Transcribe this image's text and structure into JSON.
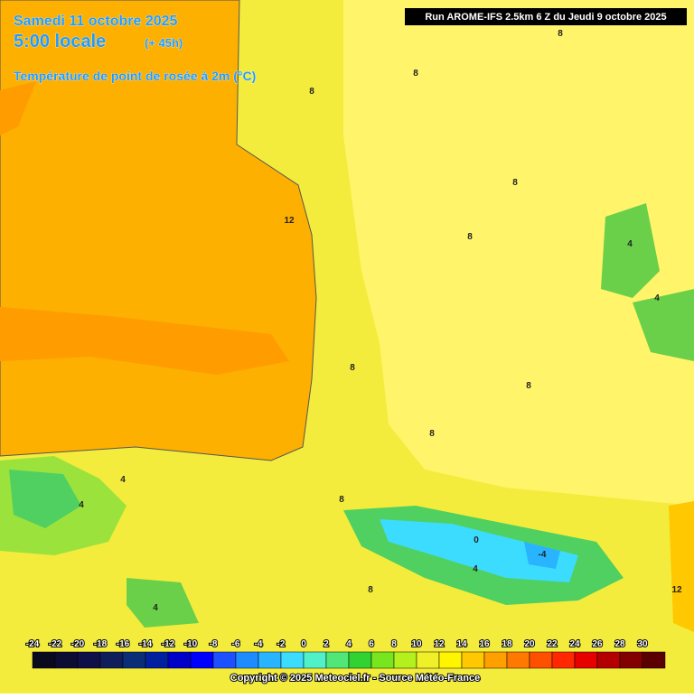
{
  "header": {
    "date": "Samedi 11 octobre 2025",
    "time": "5:00 locale",
    "lead": "(+ 45h)",
    "parameter": "Température de point de rosée à 2m (°C)",
    "run": "Run AROME-IFS 2.5km 6 Z du Jeudi 9 octobre 2025"
  },
  "contour_labels": [
    "8",
    "8",
    "8",
    "8",
    "12",
    "8",
    "8",
    "8",
    "8",
    "4",
    "4",
    "8",
    "4",
    "4",
    "0",
    "-4",
    "4",
    "8",
    "4",
    "12"
  ],
  "legend": {
    "ticks": [
      -24,
      -22,
      -20,
      -18,
      -16,
      -14,
      -12,
      -10,
      -8,
      -6,
      -4,
      -2,
      0,
      2,
      4,
      6,
      8,
      10,
      12,
      14,
      16,
      18,
      20,
      22,
      24,
      26,
      28,
      30
    ],
    "colors": [
      "#0a0a1e",
      "#0d0d33",
      "#101048",
      "#0f1e5a",
      "#0a2d78",
      "#0020a0",
      "#0000c8",
      "#0000ff",
      "#1e50ff",
      "#1e8cff",
      "#28b4ff",
      "#3cdcff",
      "#50f0c8",
      "#50e678",
      "#32d232",
      "#78e61e",
      "#b4f01e",
      "#f0f028",
      "#fff500",
      "#ffc800",
      "#ffa000",
      "#ff7800",
      "#ff5000",
      "#ff2800",
      "#e60000",
      "#b40000",
      "#820000",
      "#5a0000"
    ]
  },
  "footer": {
    "copyright": "Copyright © 2025 Meteociel.fr - Source Météo-France"
  }
}
